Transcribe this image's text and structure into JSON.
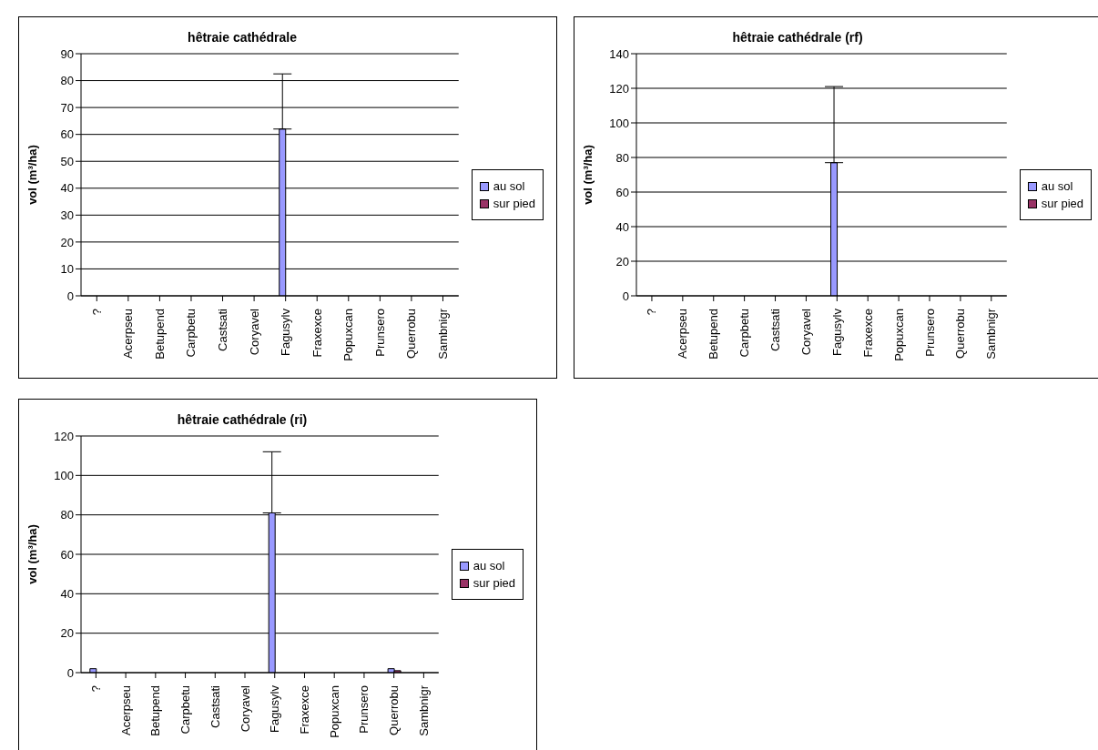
{
  "chart_data": [
    {
      "type": "bar",
      "title": "hêtraie cathédrale",
      "ylabel": "vol (m³/ha)",
      "categories": [
        "?",
        "Acerpseu",
        "Betupend",
        "Carpbetu",
        "Castsati",
        "Coryavel",
        "Fagusylv",
        "Fraxexce",
        "Popuxcan",
        "Prunsero",
        "Querrobu",
        "Sambnigr"
      ],
      "series": [
        {
          "name": "au sol",
          "color": "#9999ff",
          "values": [
            0,
            0,
            0,
            0,
            0,
            0,
            62,
            0,
            0,
            0,
            0,
            0
          ],
          "errors": [
            null,
            null,
            null,
            null,
            null,
            null,
            [
              62,
              82.5
            ],
            null,
            null,
            null,
            null,
            null
          ]
        },
        {
          "name": "sur pied",
          "color": "#993366",
          "values": [
            0,
            0,
            0,
            0,
            0,
            0,
            0,
            0,
            0,
            0,
            0,
            0
          ]
        }
      ],
      "ylim": [
        0,
        90
      ],
      "yticks": [
        0,
        10,
        20,
        30,
        40,
        50,
        60,
        70,
        80,
        90
      ],
      "grid": "y",
      "legend": "right"
    },
    {
      "type": "bar",
      "title": "hêtraie cathédrale (rf)",
      "ylabel": "vol (m³/ha)",
      "categories": [
        "?",
        "Acerpseu",
        "Betupend",
        "Carpbetu",
        "Castsati",
        "Coryavel",
        "Fagusylv",
        "Fraxexce",
        "Popuxcan",
        "Prunsero",
        "Querrobu",
        "Sambnigr"
      ],
      "series": [
        {
          "name": "au sol",
          "color": "#9999ff",
          "values": [
            0,
            0,
            0,
            0,
            0,
            0,
            77,
            0,
            0,
            0,
            0,
            0
          ],
          "errors": [
            null,
            null,
            null,
            null,
            null,
            null,
            [
              77,
              121
            ],
            null,
            null,
            null,
            null,
            null
          ]
        },
        {
          "name": "sur pied",
          "color": "#993366",
          "values": [
            0,
            0,
            0,
            0,
            0,
            0,
            0,
            0,
            0,
            0,
            0,
            0
          ]
        }
      ],
      "ylim": [
        0,
        140
      ],
      "yticks": [
        0,
        20,
        40,
        60,
        80,
        100,
        120,
        140
      ],
      "grid": "y",
      "legend": "right"
    },
    {
      "type": "bar",
      "title": "hêtraie cathédrale (ri)",
      "ylabel": "vol (m³/ha)",
      "categories": [
        "?",
        "Acerpseu",
        "Betupend",
        "Carpbetu",
        "Castsati",
        "Coryavel",
        "Fagusylv",
        "Fraxexce",
        "Popuxcan",
        "Prunsero",
        "Querrobu",
        "Sambnigr"
      ],
      "series": [
        {
          "name": "au sol",
          "color": "#9999ff",
          "values": [
            2,
            0,
            0,
            0,
            0,
            0,
            81,
            0,
            0,
            0,
            2,
            0
          ],
          "errors": [
            null,
            null,
            null,
            null,
            null,
            null,
            [
              81,
              112
            ],
            null,
            null,
            null,
            null,
            null
          ]
        },
        {
          "name": "sur pied",
          "color": "#993366",
          "values": [
            0,
            0,
            0,
            0,
            0,
            0,
            0,
            0,
            0,
            0,
            1,
            0
          ]
        }
      ],
      "ylim": [
        0,
        120
      ],
      "yticks": [
        0,
        20,
        40,
        60,
        80,
        100,
        120
      ],
      "grid": "y",
      "legend": "right"
    }
  ]
}
